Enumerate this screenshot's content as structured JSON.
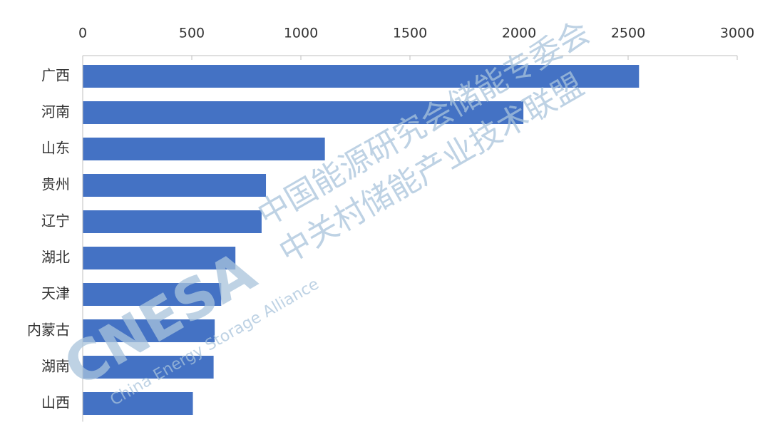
{
  "chart_data": {
    "type": "bar",
    "orientation": "horizontal",
    "categories": [
      "广西",
      "河南",
      "山东",
      "贵州",
      "辽宁",
      "湖北",
      "天津",
      "内蒙古",
      "湖南",
      "山西"
    ],
    "values": [
      2550,
      2020,
      1110,
      840,
      820,
      700,
      635,
      605,
      600,
      505
    ],
    "color": "#4472c4",
    "xlim": [
      0,
      3000
    ],
    "xticks": [
      0,
      500,
      1000,
      1500,
      2000,
      2500,
      3000
    ],
    "grid": false
  },
  "watermark": {
    "logo": "CNESA",
    "line1": "中国能源研究会储能专委会",
    "line2": "中关村储能产业技术联盟",
    "english": "China Energy Storage Alliance"
  }
}
